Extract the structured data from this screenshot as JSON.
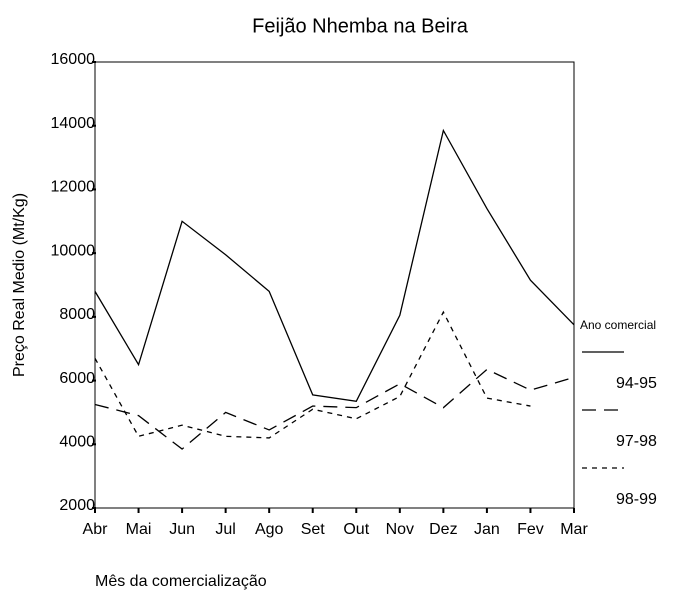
{
  "chart_data": {
    "type": "line",
    "title": "Feijão Nhemba na Beira",
    "x_label": "Mês da comercialização",
    "y_label": "Preço Real Medio (Mt/Kg)",
    "legend_title": "Ano comercial",
    "legend_position": "right",
    "categories": [
      "Abr",
      "Mai",
      "Jun",
      "Jul",
      "Ago",
      "Set",
      "Out",
      "Nov",
      "Dez",
      "Jan",
      "Fev",
      "Mar"
    ],
    "ylim": [
      2000,
      16000
    ],
    "yticks": [
      2000,
      4000,
      6000,
      8000,
      10000,
      12000,
      14000,
      16000
    ],
    "series": [
      {
        "name": "94-95",
        "color": "#000000",
        "dash": "solid",
        "values": [
          8800,
          6500,
          11000,
          9950,
          8800,
          5550,
          5350,
          8050,
          13850,
          11400,
          9150,
          7750
        ]
      },
      {
        "name": "97-98",
        "color": "#000000",
        "dash": "long",
        "values": [
          5250,
          4900,
          3850,
          5000,
          4450,
          5200,
          5150,
          5900,
          5150,
          6350,
          5700,
          6100
        ]
      },
      {
        "name": "98-99",
        "color": "#000000",
        "dash": "short",
        "values": [
          6700,
          4250,
          4600,
          4250,
          4200,
          5100,
          4800,
          5500,
          8150,
          5450,
          5200,
          null
        ]
      }
    ]
  }
}
